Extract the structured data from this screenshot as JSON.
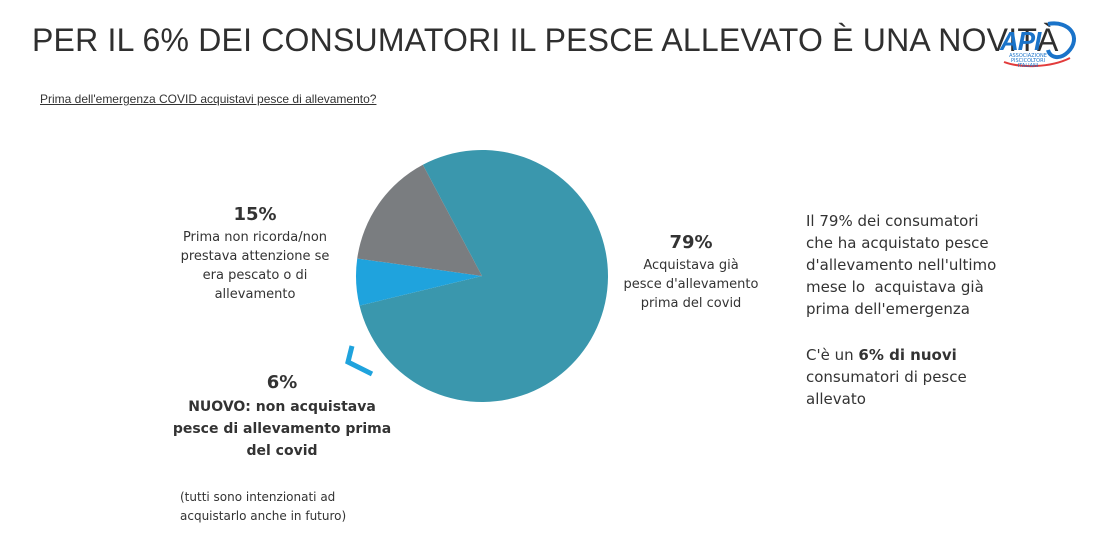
{
  "header": {
    "title": "PER IL 6% DEI CONSUMATORI IL PESCE ALLEVATO È UNA NOVITÀ",
    "logo_text": "API",
    "logo_sub": "ASSOCIAZIONE PISCICOLTORI ITALIANI",
    "question": "Prima dell'emergenza COVID acquistavi pesce di allevamento?"
  },
  "chart_data": {
    "type": "pie",
    "title": "",
    "slices": [
      {
        "label": "Acquistava già pesce d'allevamento prima del covid",
        "value": 79,
        "display": "79%",
        "color": "#3a97ad"
      },
      {
        "label": "NUOVO: non acquistava pesce di allevamento prima del covid",
        "value": 6,
        "display": "6%",
        "color": "#1fa3dd"
      },
      {
        "label": "Prima non ricorda/non prestava attenzione se era pescato o di allevamento",
        "value": 15,
        "display": "15%",
        "color": "#7a7d80"
      }
    ]
  },
  "labels": {
    "s79_pct": "79%",
    "s79_text": [
      "Acquistava già",
      "pesce d'allevamento",
      "prima del covid"
    ],
    "s15_pct": "15%",
    "s15_text": [
      "Prima non ricorda/non",
      "prestava attenzione se",
      "era pescato o di",
      "allevamento"
    ],
    "s6_pct": "6%",
    "s6_text": [
      "NUOVO: non acquistava",
      "pesce di allevamento prima",
      "del covid"
    ],
    "s6_note": [
      "(tutti sono intenzionati ad",
      "acquistarlo anche in futuro)"
    ]
  },
  "side": {
    "p1": [
      "Il 79% dei consumatori",
      "che ha acquistato pesce",
      "d'allevamento nell'ultimo",
      "mese lo  acquistava già",
      "prima dell'emergenza"
    ],
    "p2_pre": "C'è un ",
    "p2_bold": "6% di nuovi",
    "p2_rest": [
      "consumatori di pesce",
      "allevato"
    ]
  }
}
